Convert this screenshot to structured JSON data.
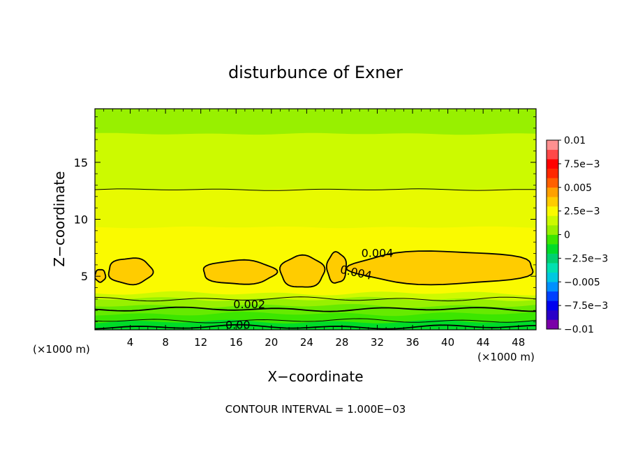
{
  "chart_data": {
    "type": "heatmap",
    "title": "disturbunce of Exner",
    "xlabel": "X−coordinate",
    "ylabel": "Z−coordinate",
    "x_unit_left": "(×1000 m)",
    "x_unit_right": "(×1000 m)",
    "footer": "CONTOUR INTERVAL = 1.000E−03",
    "xlim": [
      0,
      50
    ],
    "ylim": [
      0.3,
      19.7
    ],
    "x_ticks": [
      {
        "value": 4,
        "label": "4"
      },
      {
        "value": 8,
        "label": "8"
      },
      {
        "value": 12,
        "label": "12"
      },
      {
        "value": 16,
        "label": "16"
      },
      {
        "value": 20,
        "label": "20"
      },
      {
        "value": 24,
        "label": "24"
      },
      {
        "value": 28,
        "label": "28"
      },
      {
        "value": 32,
        "label": "32"
      },
      {
        "value": 36,
        "label": "36"
      },
      {
        "value": 40,
        "label": "40"
      },
      {
        "value": 44,
        "label": "44"
      },
      {
        "value": 48,
        "label": "48"
      }
    ],
    "y_ticks": [
      {
        "value": 5,
        "label": "5"
      },
      {
        "value": 10,
        "label": "10"
      },
      {
        "value": 15,
        "label": "15"
      }
    ],
    "colorbar": {
      "levels": [
        {
          "value": -0.01,
          "label": "−0.01"
        },
        {
          "value": -0.0075,
          "label": "−7.5e−3"
        },
        {
          "value": -0.005,
          "label": "−0.005"
        },
        {
          "value": -0.0025,
          "label": "−2.5e−3"
        },
        {
          "value": 0,
          "label": "0"
        },
        {
          "value": 0.0025,
          "label": "2.5e−3"
        },
        {
          "value": 0.005,
          "label": "0.005"
        },
        {
          "value": 0.0075,
          "label": "7.5e−3"
        },
        {
          "value": 0.01,
          "label": "0.01"
        }
      ],
      "colors": [
        "#7a00a8",
        "#2a00c8",
        "#0000ee",
        "#0040ff",
        "#0090ff",
        "#00c8e0",
        "#00e0b0",
        "#00d070",
        "#00dc28",
        "#3ce600",
        "#98f000",
        "#ccfa00",
        "#fafa00",
        "#ffcc00",
        "#ffa000",
        "#ff6000",
        "#ff2800",
        "#ff0000",
        "#ff4848",
        "#ff9090"
      ]
    },
    "contour_labels": [
      {
        "text": "0.004",
        "x": 32,
        "y": 6.7
      },
      {
        "text": "0.004",
        "x": 29.5,
        "y": 5.0
      },
      {
        "text": "0.002",
        "x": 17.5,
        "y": 2.2
      },
      {
        "text": "0.00",
        "x": 16.2,
        "y": 0.4
      }
    ],
    "field": {
      "bands": [
        {
          "z0": 17.5,
          "z1": 19.7,
          "color": "#98f000"
        },
        {
          "z0": 12.6,
          "z1": 17.5,
          "color": "#ccfa00"
        },
        {
          "z0": 9.3,
          "z1": 12.6,
          "color": "#e8fa00"
        },
        {
          "z0": 3.5,
          "z1": 9.3,
          "color": "#fafa00"
        },
        {
          "z0": 3.0,
          "z1": 3.5,
          "color": "#ccfa00"
        },
        {
          "z0": 2.4,
          "z1": 3.0,
          "color": "#98f000"
        },
        {
          "z0": 1.7,
          "z1": 2.4,
          "color": "#66ea00"
        },
        {
          "z0": 1.0,
          "z1": 1.7,
          "color": "#3ce600"
        },
        {
          "z0": 0.3,
          "z1": 1.0,
          "color": "#00dc28"
        }
      ],
      "isolines_z": [
        12.6,
        3.0,
        2.1,
        1.1,
        0.55
      ],
      "cells": [
        {
          "x0": 0,
          "x1": 1.2,
          "z0": 4.5,
          "z1": 5.6
        },
        {
          "x0": 1.5,
          "x1": 6.5,
          "z0": 4.3,
          "z1": 6.6
        },
        {
          "x0": 12.2,
          "x1": 20.5,
          "z0": 4.3,
          "z1": 6.4
        },
        {
          "x0": 21,
          "x1": 26,
          "z0": 4.0,
          "z1": 6.8
        },
        {
          "x0": 26.3,
          "x1": 28.5,
          "z0": 4.4,
          "z1": 7.1
        },
        {
          "x0": 29,
          "x1": 50,
          "z0": 4.3,
          "z1": 7.2
        }
      ],
      "cell_color": "#ffcc00"
    }
  }
}
